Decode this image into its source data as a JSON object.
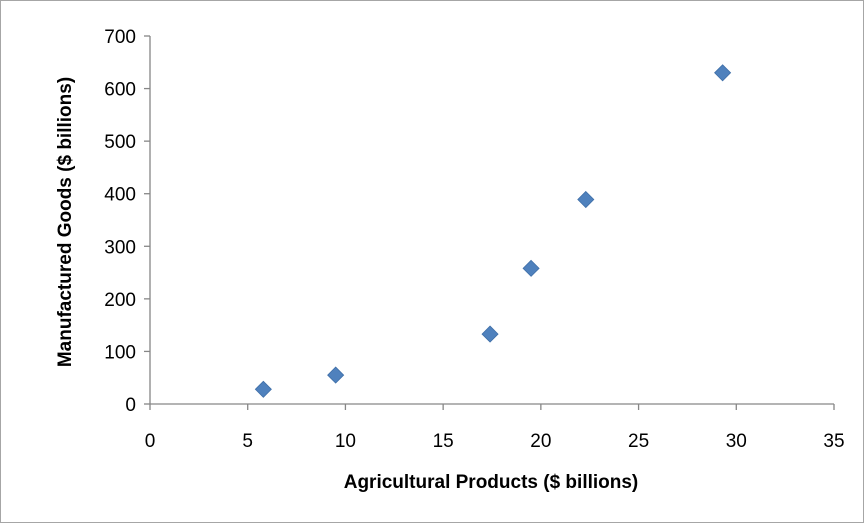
{
  "chart_data": {
    "type": "scatter",
    "title": "",
    "xlabel": "Agricultural Products ($ billions)",
    "ylabel": "Manufactured Goods ($ billions)",
    "xlim": [
      0,
      35
    ],
    "ylim": [
      0,
      700
    ],
    "xticks": [
      0,
      5,
      10,
      15,
      20,
      25,
      30,
      35
    ],
    "yticks": [
      0,
      100,
      200,
      300,
      400,
      500,
      600,
      700
    ],
    "grid": false,
    "legend": "none",
    "marker": "diamond",
    "color": "#4f81bd",
    "points": [
      {
        "x": 5.8,
        "y": 28
      },
      {
        "x": 9.5,
        "y": 55
      },
      {
        "x": 17.4,
        "y": 133
      },
      {
        "x": 19.5,
        "y": 258
      },
      {
        "x": 22.3,
        "y": 389
      },
      {
        "x": 29.3,
        "y": 630
      }
    ]
  }
}
